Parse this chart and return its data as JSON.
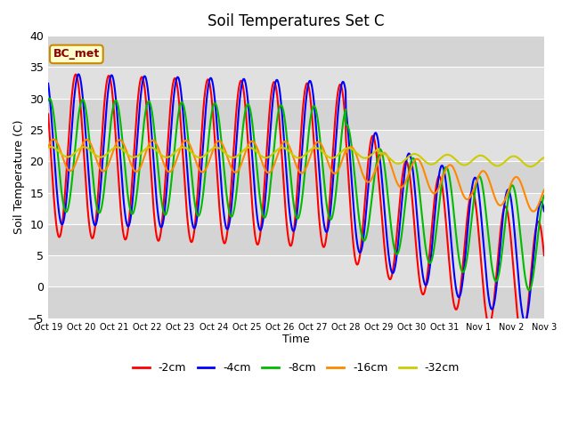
{
  "title": "Soil Temperatures Set C",
  "xlabel": "Time",
  "ylabel": "Soil Temperature (C)",
  "ylim": [
    -5,
    40
  ],
  "xlim": [
    0,
    360
  ],
  "annotation": "BC_met",
  "legend": [
    "-2cm",
    "-4cm",
    "-8cm",
    "-16cm",
    "-32cm"
  ],
  "colors": [
    "#ff0000",
    "#0000ff",
    "#00bb00",
    "#ff8800",
    "#cccc00"
  ],
  "x_tick_labels": [
    "Oct 19",
    "Oct 20",
    "Oct 21",
    "Oct 22",
    "Oct 23",
    "Oct 24",
    "Oct 25",
    "Oct 26",
    "Oct 27",
    "Oct 28",
    "Oct 29",
    "Oct 30",
    "Oct 31",
    "Nov 1",
    "Nov 2",
    "Nov 3"
  ],
  "x_tick_positions": [
    0,
    24,
    48,
    72,
    96,
    120,
    144,
    168,
    192,
    216,
    240,
    264,
    288,
    312,
    336,
    360
  ],
  "line_width": 1.5,
  "hours": 360,
  "band_colors": [
    "#d4d4d4",
    "#e0e0e0"
  ],
  "white_line_color": "#ffffff"
}
